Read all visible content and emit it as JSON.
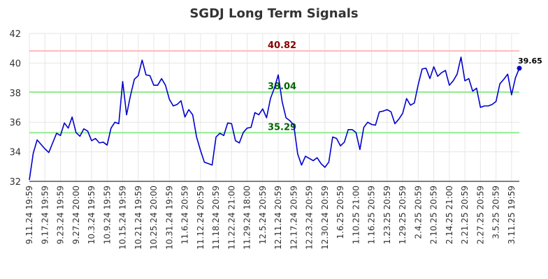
{
  "chart_data": {
    "type": "line",
    "title": "SGDJ Long Term Signals",
    "xlabel": "",
    "ylabel": "",
    "ylim": [
      32,
      42
    ],
    "yticks": [
      32,
      34,
      36,
      38,
      40,
      42
    ],
    "grid": true,
    "x_tick_labels": [
      "9.11.24 19:59",
      "9.17.24 19:59",
      "9.23.24 19:59",
      "9.27.24 20:00",
      "10.3.24 19:59",
      "10.9.24 19:59",
      "10.15.24 19:59",
      "10.21.24 19:59",
      "10.25.24 20:00",
      "10.31.24 19:59",
      "11.6.24 20:59",
      "11.12.24 20:59",
      "11.18.24 20:59",
      "11.22.24 21:00",
      "11.29.24 18:00",
      "12.5.24 20:59",
      "12.11.24 20:59",
      "12.17.24 20:59",
      "12.23.24 20:59",
      "12.30.24 20:59",
      "1.6.25 20:59",
      "1.10.25 21:00",
      "1.16.25 20:59",
      "1.23.25 20:59",
      "1.29.25 20:59",
      "2.4.25 20:59",
      "2.10.25 20:59",
      "2.14.25 21:00",
      "2.21.25 20:59",
      "2.27.25 20:59",
      "3.5.25 20:59",
      "3.11.25 19:59"
    ],
    "x_tick_positions": [
      0,
      4,
      8,
      12,
      16,
      20,
      24,
      28,
      32,
      36,
      40,
      44,
      48,
      52,
      56,
      60,
      64,
      68,
      72,
      76,
      80,
      84,
      88,
      92,
      96,
      100,
      104,
      108,
      112,
      116,
      120,
      124
    ],
    "series": [
      {
        "color": "#0000cc",
        "values": [
          32.1,
          33.9,
          34.8,
          34.5,
          34.2,
          33.95,
          34.6,
          35.25,
          35.1,
          35.95,
          35.6,
          36.35,
          35.3,
          35.05,
          35.55,
          35.4,
          34.75,
          34.9,
          34.6,
          34.65,
          34.45,
          35.6,
          36.0,
          35.9,
          38.75,
          36.5,
          37.8,
          38.9,
          39.15,
          40.2,
          39.2,
          39.15,
          38.5,
          38.5,
          38.95,
          38.5,
          37.55,
          37.1,
          37.2,
          37.45,
          36.35,
          36.85,
          36.5,
          35.0,
          34.1,
          33.3,
          33.2,
          33.1,
          35.0,
          35.25,
          35.1,
          35.95,
          35.9,
          34.75,
          34.6,
          35.3,
          35.6,
          35.65,
          36.65,
          36.5,
          36.9,
          36.3,
          37.6,
          38.3,
          39.2,
          37.4,
          36.3,
          36.1,
          35.8,
          33.85,
          33.1,
          33.7,
          33.55,
          33.4,
          33.6,
          33.2,
          32.95,
          33.3,
          35.0,
          34.9,
          34.4,
          34.65,
          35.5,
          35.5,
          35.3,
          34.15,
          35.65,
          36.0,
          35.85,
          35.8,
          36.7,
          36.75,
          36.85,
          36.7,
          35.9,
          36.2,
          36.6,
          37.6,
          37.15,
          37.3,
          38.55,
          39.6,
          39.65,
          38.95,
          39.75,
          39.1,
          39.35,
          39.5,
          38.5,
          38.8,
          39.25,
          40.4,
          38.8,
          38.95,
          38.1,
          38.3,
          37.0,
          37.1,
          37.1,
          37.2,
          37.4,
          38.6,
          38.9,
          39.25,
          37.85,
          39.0,
          39.65
        ]
      }
    ],
    "reference_lines": [
      {
        "value": 40.82,
        "label": "40.82",
        "color": "#ffbbbb",
        "label_color": "#880000"
      },
      {
        "value": 38.04,
        "label": "38.04",
        "color": "#90ee90",
        "label_color": "#006600"
      },
      {
        "value": 35.29,
        "label": "35.29",
        "color": "#90ee90",
        "label_color": "#006600"
      }
    ],
    "last_value_label": "39.65"
  }
}
